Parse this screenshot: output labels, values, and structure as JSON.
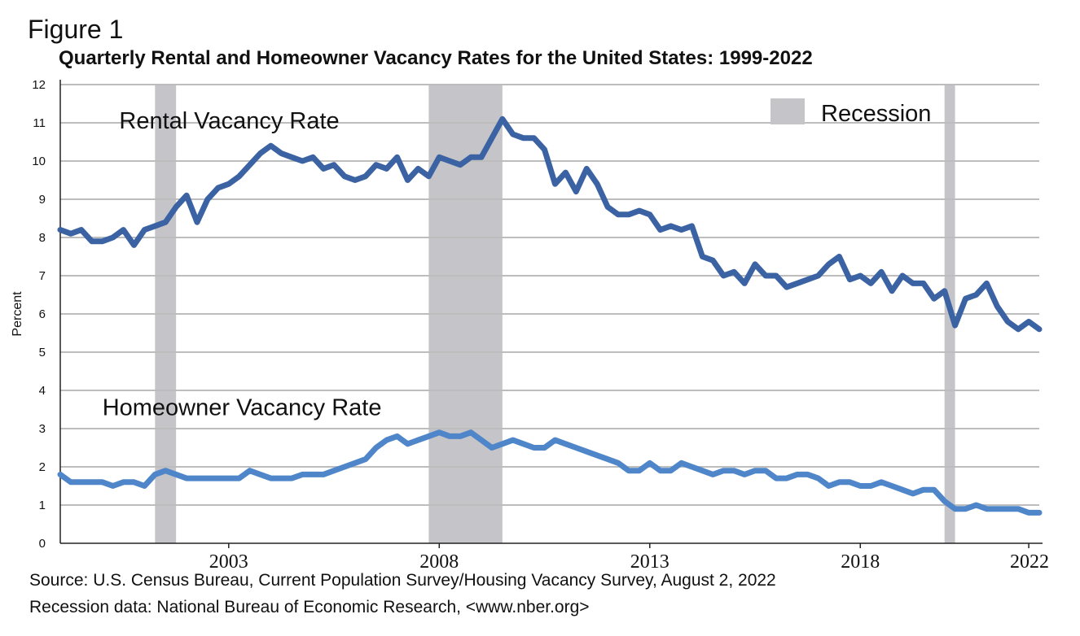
{
  "figure_label": "Figure 1",
  "source_line": "Source: U.S. Census Bureau, Current Population Survey/Housing Vacancy Survey, August 2, 2022",
  "recession_source_line": "Recession data: National Bureau of Economic Research, <www.nber.org>",
  "chart_data": {
    "type": "line",
    "title": "Quarterly Rental and Homeowner Vacancy Rates for the United States: 1999-2022",
    "xlabel": "",
    "ylabel": "Percent",
    "ylim": [
      0,
      12
    ],
    "xlim": [
      1999.0,
      2022.25
    ],
    "y_ticks": [
      "0",
      "1",
      "2",
      "3",
      "4",
      "5",
      "6",
      "7",
      "8",
      "9",
      "10",
      "11",
      "12"
    ],
    "x_tick_labels": [
      "2003",
      "2008",
      "2013",
      "2018",
      "2022"
    ],
    "grid": true,
    "x_start": 1999.0,
    "x_step": 0.25,
    "series": [
      {
        "name": "Rental Vacancy Rate",
        "color": "#3b63a3",
        "values": [
          8.2,
          8.1,
          8.2,
          7.9,
          7.9,
          8.0,
          8.2,
          7.8,
          8.2,
          8.3,
          8.4,
          8.8,
          9.1,
          8.4,
          9.0,
          9.3,
          9.4,
          9.6,
          9.9,
          10.2,
          10.4,
          10.2,
          10.1,
          10.0,
          10.1,
          9.8,
          9.9,
          9.6,
          9.5,
          9.6,
          9.9,
          9.8,
          10.1,
          9.5,
          9.8,
          9.6,
          10.1,
          10.0,
          9.9,
          10.1,
          10.1,
          10.6,
          11.1,
          10.7,
          10.6,
          10.6,
          10.3,
          9.4,
          9.7,
          9.2,
          9.8,
          9.4,
          8.8,
          8.6,
          8.6,
          8.7,
          8.6,
          8.2,
          8.3,
          8.2,
          8.3,
          7.5,
          7.4,
          7.0,
          7.1,
          6.8,
          7.3,
          7.0,
          7.0,
          6.7,
          6.8,
          6.9,
          7.0,
          7.3,
          7.5,
          6.9,
          7.0,
          6.8,
          7.1,
          6.6,
          7.0,
          6.8,
          6.8,
          6.4,
          6.6,
          5.7,
          6.4,
          6.5,
          6.8,
          6.2,
          5.8,
          5.6,
          5.8,
          5.6
        ]
      },
      {
        "name": "Homeowner Vacancy Rate",
        "color": "#4f86c9",
        "values": [
          1.8,
          1.6,
          1.6,
          1.6,
          1.6,
          1.5,
          1.6,
          1.6,
          1.5,
          1.8,
          1.9,
          1.8,
          1.7,
          1.7,
          1.7,
          1.7,
          1.7,
          1.7,
          1.9,
          1.8,
          1.7,
          1.7,
          1.7,
          1.8,
          1.8,
          1.8,
          1.9,
          2.0,
          2.1,
          2.2,
          2.5,
          2.7,
          2.8,
          2.6,
          2.7,
          2.8,
          2.9,
          2.8,
          2.8,
          2.9,
          2.7,
          2.5,
          2.6,
          2.7,
          2.6,
          2.5,
          2.5,
          2.7,
          2.6,
          2.5,
          2.4,
          2.3,
          2.2,
          2.1,
          1.9,
          1.9,
          2.1,
          1.9,
          1.9,
          2.1,
          2.0,
          1.9,
          1.8,
          1.9,
          1.9,
          1.8,
          1.9,
          1.9,
          1.7,
          1.7,
          1.8,
          1.8,
          1.7,
          1.5,
          1.6,
          1.6,
          1.5,
          1.5,
          1.6,
          1.5,
          1.4,
          1.3,
          1.4,
          1.4,
          1.1,
          0.9,
          0.9,
          1.0,
          0.9,
          0.9,
          0.9,
          0.9,
          0.8,
          0.8
        ]
      }
    ],
    "recessions": [
      [
        2001.25,
        2001.75
      ],
      [
        2007.75,
        2009.5
      ],
      [
        2020.0,
        2020.25
      ]
    ],
    "recession_color": "#c5c4c8",
    "legend": {
      "label": "Recession",
      "position": "top-right"
    }
  }
}
